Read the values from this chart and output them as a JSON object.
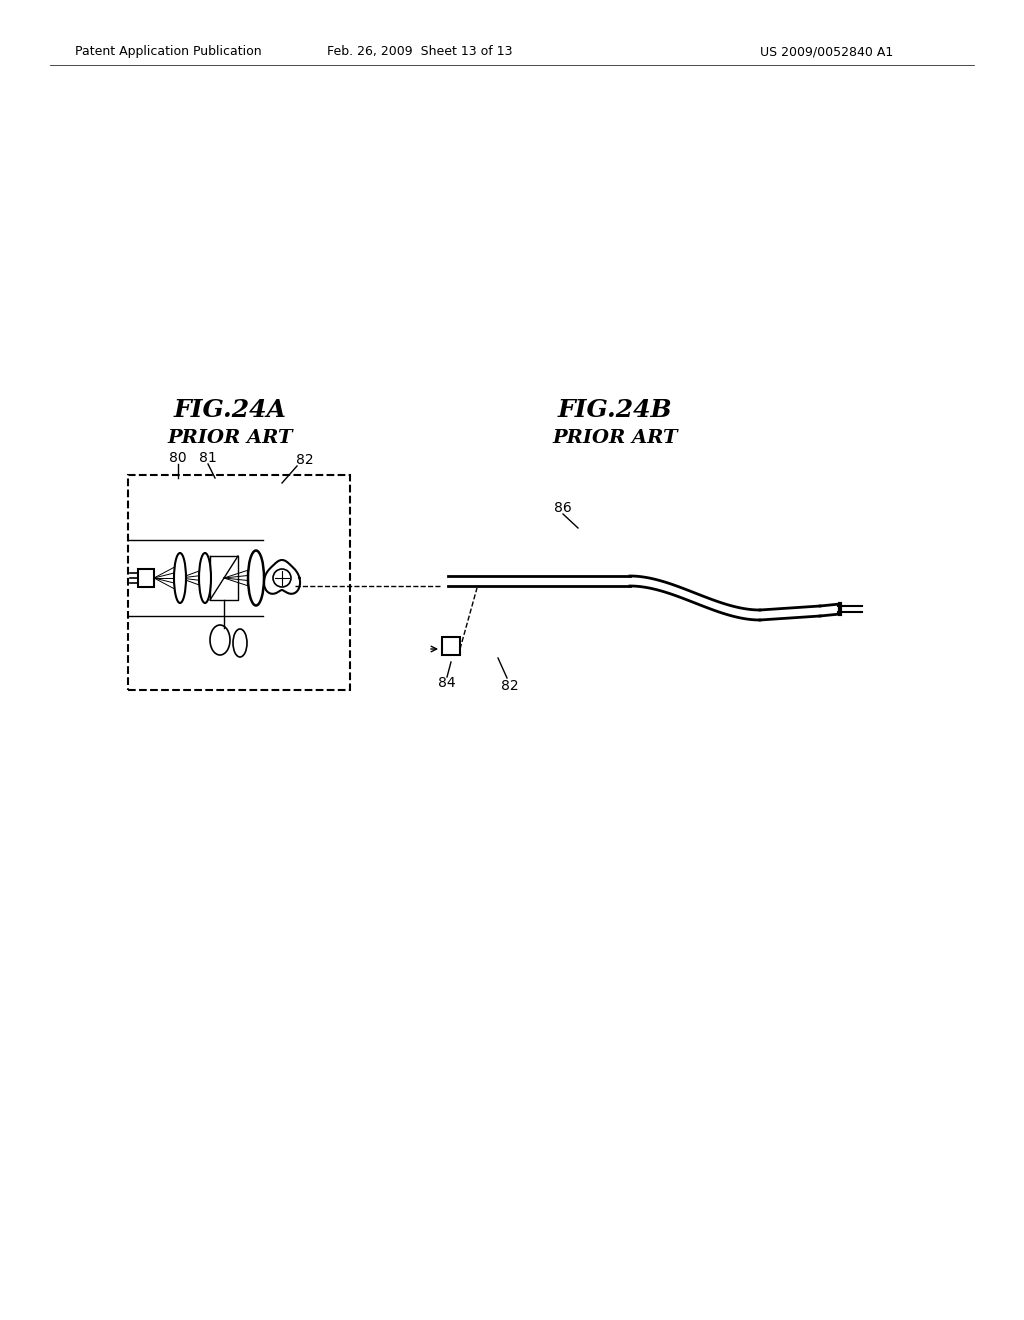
{
  "background_color": "#ffffff",
  "header_left": "Patent Application Publication",
  "header_center": "Feb. 26, 2009  Sheet 13 of 13",
  "header_right": "US 2009/0052840 A1",
  "fig_a_title": "FIG.24A",
  "fig_a_subtitle": "PRIOR ART",
  "fig_b_title": "FIG.24B",
  "fig_b_subtitle": "PRIOR ART",
  "label_80": "80",
  "label_81": "81",
  "label_82": "82",
  "label_84": "84",
  "label_86": "86"
}
